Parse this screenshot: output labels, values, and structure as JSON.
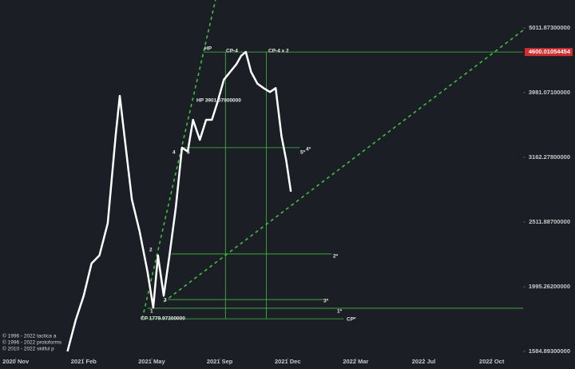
{
  "chart_data": {
    "type": "line",
    "x": [
      9.9,
      11.5,
      13,
      14.5,
      16,
      17.6,
      19.1,
      19.9,
      20.6,
      22.2,
      23.7,
      25.2,
      26.3,
      27.2,
      28.3,
      29.4,
      30.6,
      31.8,
      32.9,
      33.9,
      35.2,
      36.4,
      37.5,
      38.5,
      39.8,
      41,
      42.2,
      43.1,
      44,
      45,
      46.2,
      47.4,
      48.6,
      49.7,
      50.8,
      51.7,
      52.6
    ],
    "series": [
      {
        "color": "#ffffff",
        "values": [
          1585,
          1775,
          1932,
          2167,
          2230,
          2500,
          3414,
          3936,
          3515,
          2723,
          2427,
          2104,
          1852,
          2230,
          1932,
          2230,
          2642,
          3273,
          3228,
          3614,
          3365,
          3614,
          3614,
          3828,
          4169,
          4286,
          4406,
          4539,
          4603,
          4286,
          4111,
          4046,
          3990,
          4046,
          3414,
          3133,
          2799
        ]
      }
    ],
    "log_scale": true,
    "ylim": [
      1549,
      5536
    ],
    "yticks": [
      {
        "value": 1584.893,
        "label": "1584.89300000"
      },
      {
        "value": 1995.262,
        "label": "1995.26200000"
      },
      {
        "value": 2511.886,
        "label": "2511.88700000"
      },
      {
        "value": 3162.278,
        "label": "3162.27800000"
      },
      {
        "value": 3981.071,
        "label": "3981.07100000"
      },
      {
        "value": 5011.873,
        "label": "5011.87300000"
      }
    ],
    "xlim": [
      -3,
      97
    ],
    "xticks": [
      {
        "value": 0,
        "label": "2020 Nov"
      },
      {
        "value": 13,
        "label": "2021 Feb"
      },
      {
        "value": 26,
        "label": "2021 May"
      },
      {
        "value": 39,
        "label": "2021 Sep"
      },
      {
        "value": 52,
        "label": "2021 Dec"
      },
      {
        "value": 65,
        "label": "2022 Mar"
      },
      {
        "value": 78,
        "label": "2022 Jul"
      },
      {
        "value": 91,
        "label": "2022 Oct"
      }
    ],
    "highlight": {
      "value": 4600.01054454,
      "label": "4600.01054454",
      "color": "#d32f2f"
    },
    "line_color": "#3fbf3f",
    "lines": [
      {
        "x": [
          35.9,
          97
        ],
        "y": [
          4600.01054454,
          4600.01054454
        ],
        "dashed": false
      },
      {
        "x": [
          31.8,
          54.3
        ],
        "y": [
          3273,
          3273
        ],
        "dashed": false
      },
      {
        "x": [
          29.8,
          60.4
        ],
        "y": [
          2242,
          2242
        ],
        "dashed": false
      },
      {
        "x": [
          29.1,
          58.9
        ],
        "y": [
          1906,
          1906
        ],
        "dashed": false
      },
      {
        "x": [
          25.2,
          97
        ],
        "y": [
          1848,
          1848
        ],
        "dashed": false
      },
      {
        "x": [
          24.5,
          62.7
        ],
        "y": [
          1779.973,
          1779.973
        ],
        "dashed": false
      },
      {
        "x": [
          40.1,
          40.1
        ],
        "y": [
          4600.01054454,
          1779.973
        ],
        "dashed": false
      },
      {
        "x": [
          47.9,
          47.9
        ],
        "y": [
          4600.01054454,
          1779.973
        ],
        "dashed": false
      },
      {
        "x": [
          24.2,
          38.2
        ],
        "y": [
          1780,
          5536
        ],
        "dashed": true
      },
      {
        "x": [
          28.3,
          97
        ],
        "y": [
          1890,
          4970
        ],
        "dashed": true
      }
    ],
    "annotations": [
      "HP",
      "CP-4",
      "CP-4 x 2",
      "HP 3901.07000000",
      "4",
      "5",
      "1",
      "2",
      "3",
      "5*",
      "4*",
      "2*",
      "3*",
      "1*",
      "CP*",
      "CP 1779.97300000"
    ],
    "copyright": [
      "© 1996 - 2022 tactica a",
      "© 1996 - 2022 protoforms",
      "© 2010 - 2022 skilful p"
    ]
  }
}
